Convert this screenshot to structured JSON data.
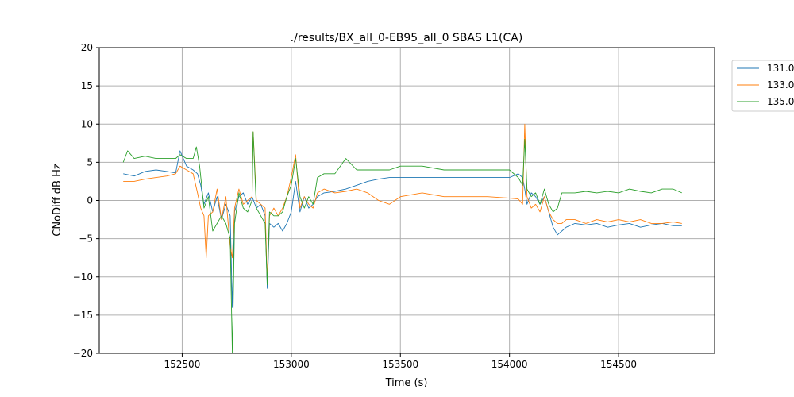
{
  "chart_data": {
    "type": "line",
    "title": "./results/BX_all_0-EB95_all_0 SBAS L1(CA)",
    "xlabel": "Time (s)",
    "ylabel": "CNoDiff dB Hz",
    "xlim": [
      152120,
      154940
    ],
    "ylim": [
      -20,
      20
    ],
    "xticks": [
      152500,
      153000,
      153500,
      154000,
      154500
    ],
    "yticks": [
      -20,
      -15,
      -10,
      -5,
      0,
      5,
      10,
      15,
      20
    ],
    "grid": true,
    "legend_position": "upper-right-outside",
    "series": [
      {
        "name": "131.0",
        "legend_text": "131.0",
        "color": "#1f77b4",
        "x": [
          152230,
          152280,
          152330,
          152380,
          152430,
          152470,
          152490,
          152520,
          152550,
          152570,
          152585,
          152600,
          152620,
          152640,
          152660,
          152680,
          152700,
          152720,
          152730,
          152740,
          152760,
          152780,
          152800,
          152820,
          152840,
          152860,
          152880,
          152890,
          152900,
          152920,
          152940,
          152960,
          152980,
          153000,
          153020,
          153040,
          153060,
          153080,
          153100,
          153120,
          153150,
          153200,
          153250,
          153300,
          153350,
          153400,
          153450,
          153500,
          153600,
          153700,
          153800,
          153900,
          154000,
          154040,
          154060,
          154070,
          154080,
          154100,
          154120,
          154140,
          154160,
          154180,
          154200,
          154220,
          154240,
          154260,
          154300,
          154350,
          154400,
          154450,
          154500,
          154550,
          154600,
          154650,
          154700,
          154750,
          154790
        ],
        "y": [
          3.5,
          3.2,
          3.8,
          4.0,
          3.8,
          3.6,
          6.5,
          4.5,
          4.0,
          3.5,
          2.0,
          -0.5,
          1.0,
          -1.5,
          0.5,
          -2.5,
          -0.5,
          -2.0,
          -14.0,
          -1.5,
          0.5,
          1.0,
          -0.5,
          0.5,
          -1.0,
          -0.5,
          -2.0,
          -11.5,
          -3.0,
          -3.5,
          -3.0,
          -4.0,
          -3.0,
          -1.5,
          2.5,
          -1.5,
          0.5,
          -1.0,
          -0.5,
          0.5,
          1.0,
          1.2,
          1.5,
          2.0,
          2.5,
          2.8,
          3.0,
          3.0,
          3.0,
          3.0,
          3.0,
          3.0,
          3.0,
          3.5,
          3.0,
          1.5,
          -0.5,
          1.0,
          0.5,
          -0.5,
          0.5,
          -1.5,
          -3.5,
          -4.5,
          -4.0,
          -3.5,
          -3.0,
          -3.2,
          -3.0,
          -3.5,
          -3.2,
          -3.0,
          -3.5,
          -3.2,
          -3.0,
          -3.3,
          -3.3
        ]
      },
      {
        "name": "133.0",
        "legend_text": "133.0",
        "color": "#ff7f0e",
        "x": [
          152230,
          152280,
          152330,
          152380,
          152430,
          152470,
          152490,
          152520,
          152550,
          152570,
          152585,
          152600,
          152610,
          152620,
          152640,
          152660,
          152680,
          152700,
          152720,
          152730,
          152740,
          152760,
          152780,
          152800,
          152820,
          152825,
          152840,
          152860,
          152880,
          152890,
          152900,
          152920,
          152940,
          152960,
          152980,
          153000,
          153020,
          153040,
          153060,
          153080,
          153100,
          153120,
          153150,
          153200,
          153250,
          153300,
          153350,
          153400,
          153450,
          153500,
          153600,
          153700,
          153800,
          153900,
          154000,
          154040,
          154060,
          154070,
          154080,
          154100,
          154120,
          154140,
          154160,
          154180,
          154200,
          154220,
          154240,
          154260,
          154300,
          154350,
          154400,
          154450,
          154500,
          154550,
          154600,
          154650,
          154700,
          154750,
          154790
        ],
        "y": [
          2.5,
          2.5,
          2.8,
          3.0,
          3.2,
          3.5,
          4.5,
          4.0,
          3.5,
          1.0,
          -1.0,
          -2.0,
          -7.5,
          -2.0,
          -1.5,
          1.5,
          -2.5,
          0.5,
          -6.0,
          -7.5,
          -1.0,
          1.5,
          -0.5,
          0.0,
          0.5,
          9.0,
          0.0,
          -0.5,
          -1.0,
          -10.5,
          -2.0,
          -1.0,
          -2.0,
          -1.0,
          0.5,
          3.0,
          6.0,
          -1.0,
          0.5,
          -0.5,
          -1.0,
          1.0,
          1.5,
          1.0,
          1.2,
          1.5,
          1.0,
          0.0,
          -0.5,
          0.5,
          1.0,
          0.5,
          0.5,
          0.5,
          0.3,
          0.2,
          -0.5,
          10.0,
          0.5,
          -1.0,
          -0.5,
          -1.5,
          0.5,
          -1.5,
          -2.5,
          -3.0,
          -3.0,
          -2.5,
          -2.5,
          -3.0,
          -2.5,
          -2.8,
          -2.5,
          -2.8,
          -2.5,
          -3.0,
          -3.0,
          -2.8,
          -3.0
        ]
      },
      {
        "name": "135.0",
        "legend_text": "135.0",
        "color": "#2ca02c",
        "x": [
          152230,
          152250,
          152280,
          152330,
          152380,
          152430,
          152470,
          152490,
          152520,
          152550,
          152565,
          152580,
          152600,
          152620,
          152640,
          152660,
          152680,
          152700,
          152720,
          152730,
          152740,
          152760,
          152780,
          152800,
          152820,
          152825,
          152840,
          152860,
          152880,
          152890,
          152900,
          152920,
          152940,
          152960,
          152980,
          153000,
          153020,
          153040,
          153060,
          153080,
          153100,
          153120,
          153150,
          153200,
          153250,
          153300,
          153350,
          153400,
          153450,
          153500,
          153600,
          153700,
          153800,
          153900,
          154000,
          154040,
          154060,
          154070,
          154080,
          154100,
          154120,
          154140,
          154160,
          154180,
          154200,
          154220,
          154240,
          154260,
          154300,
          154350,
          154400,
          154450,
          154500,
          154550,
          154600,
          154650,
          154700,
          154750,
          154790
        ],
        "y": [
          5.0,
          6.5,
          5.5,
          5.8,
          5.5,
          5.5,
          5.5,
          6.0,
          5.5,
          5.5,
          7.0,
          4.5,
          -1.0,
          0.5,
          -4.0,
          -3.0,
          -2.0,
          -3.0,
          -5.0,
          -20.0,
          -3.0,
          1.0,
          -1.0,
          -1.5,
          0.0,
          9.0,
          -1.0,
          -2.0,
          -3.0,
          -11.0,
          -1.5,
          -2.0,
          -2.0,
          -1.5,
          0.5,
          2.0,
          5.5,
          0.5,
          -1.0,
          0.5,
          -0.5,
          3.0,
          3.5,
          3.5,
          5.5,
          4.0,
          4.0,
          4.0,
          4.0,
          4.5,
          4.5,
          4.0,
          4.0,
          4.0,
          4.0,
          3.0,
          2.0,
          8.0,
          1.5,
          0.5,
          1.0,
          -0.5,
          1.5,
          -0.5,
          -1.5,
          -1.0,
          1.0,
          1.0,
          1.0,
          1.2,
          1.0,
          1.2,
          1.0,
          1.5,
          1.2,
          1.0,
          1.5,
          1.5,
          1.0
        ]
      }
    ]
  }
}
